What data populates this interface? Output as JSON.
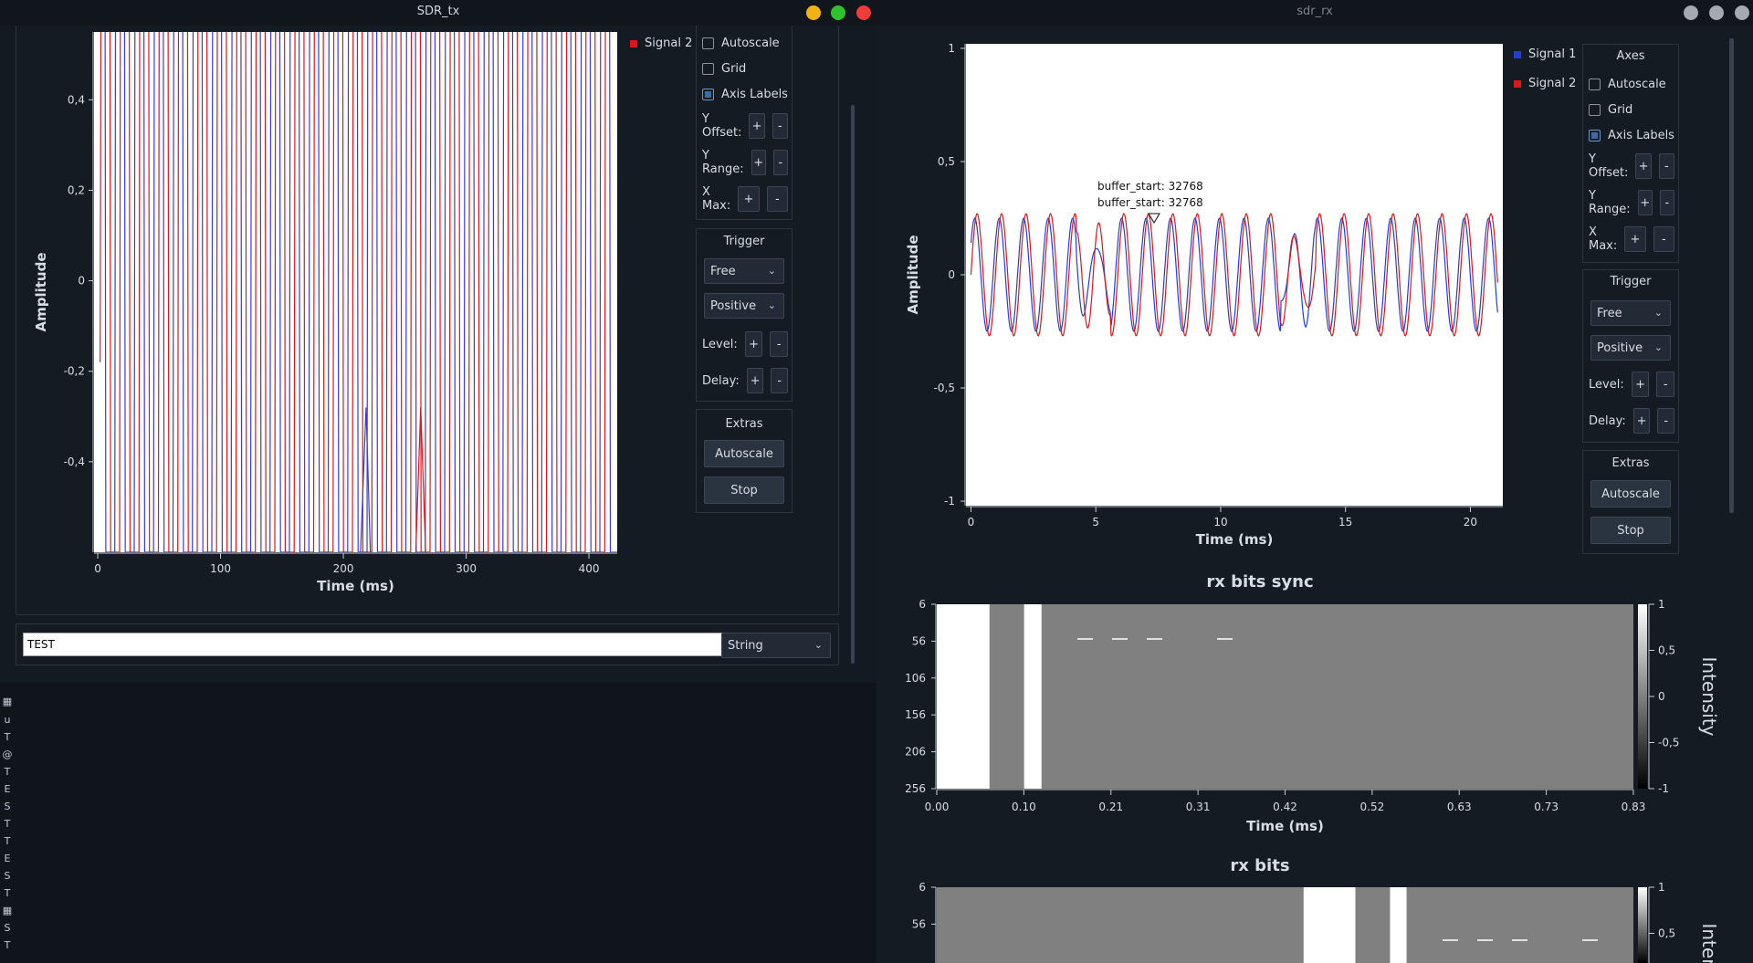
{
  "tx": {
    "title": "SDR_tx",
    "legend": [
      {
        "label": "Signal 2",
        "color": "#e0161b"
      }
    ],
    "axes": {
      "autoscale": "Autoscale",
      "grid": "Grid",
      "axis_labels": "Axis Labels",
      "y_offset": "Y Offset:",
      "y_range": "Y Range:",
      "x_max": "X Max:",
      "plus": "+",
      "minus": "-"
    },
    "trigger": {
      "title": "Trigger",
      "mode": "Free",
      "slope": "Positive",
      "level": "Level:",
      "delay": "Delay:"
    },
    "extras": {
      "title": "Extras",
      "autoscale": "Autoscale",
      "stop": "Stop"
    },
    "input": {
      "value": "TEST"
    },
    "format": "String",
    "side_chars": [
      "u",
      "T",
      "@",
      "T",
      "E",
      "S",
      "T",
      "T",
      "E",
      "S",
      "T",
      "S",
      "T"
    ]
  },
  "rx": {
    "title": "sdr_rx",
    "legend": [
      {
        "label": "Signal 1",
        "color": "#1f3fd8"
      },
      {
        "label": "Signal 2",
        "color": "#e0161b"
      }
    ],
    "axes": {
      "title": "Axes",
      "autoscale": "Autoscale",
      "grid": "Grid",
      "axis_labels": "Axis Labels",
      "y_offset": "Y Offset:",
      "y_range": "Y Range:",
      "x_max": "X Max:",
      "plus": "+",
      "minus": "-"
    },
    "trigger": {
      "title": "Trigger",
      "mode": "Free",
      "slope": "Positive",
      "level": "Level:",
      "delay": "Delay:"
    },
    "extras": {
      "title": "Extras",
      "autoscale": "Autoscale",
      "stop": "Stop"
    },
    "tooltip": [
      "buffer_start: 32768",
      "buffer_start: 32768"
    ]
  },
  "chart_data": [
    {
      "id": "tx_time_plot",
      "type": "line",
      "xlabel": "Time (ms)",
      "ylabel": "Amplitude",
      "xlim": [
        -3,
        423
      ],
      "ylim": [
        -0.6,
        0.55
      ],
      "xticks": [
        0,
        100,
        200,
        300,
        400
      ],
      "yticks": [
        0.4,
        0.2,
        0,
        -0.2,
        -0.4
      ],
      "ytick_labels": [
        "0,4",
        "0,2",
        "0",
        "-0,2",
        "-0,4"
      ],
      "series": [
        {
          "name": "Signal 2",
          "color": "#e0161b",
          "shape": "square-wave-transitions",
          "x_start": 2,
          "x_end": 419,
          "period_ms": 15.8,
          "phase_ms": 2
        },
        {
          "color": "#3a3adf",
          "shape": "square-wave-transitions",
          "x_start": 6,
          "x_end": 419,
          "period_ms": 15.8,
          "phase_ms": 9.5
        }
      ]
    },
    {
      "id": "rx_time_plot",
      "type": "line",
      "xlabel": "Time (ms)",
      "ylabel": "Amplitude",
      "xlim": [
        -0.2,
        21.3
      ],
      "ylim": [
        -1.02,
        1.02
      ],
      "xticks": [
        0,
        5,
        10,
        15,
        20
      ],
      "yticks": [
        1,
        0.5,
        0,
        -0.5,
        -1
      ],
      "ytick_labels": [
        "1",
        "0,5",
        "0",
        "-0,5",
        "-1"
      ],
      "series": [
        {
          "name": "Signal 1",
          "color": "#1f3fd8",
          "amplitude": 0.25,
          "period_ms": 0.98,
          "phase": 0.6
        },
        {
          "name": "Signal 2",
          "color": "#e0161b",
          "amplitude": 0.27,
          "period_ms": 0.98,
          "phase": 0
        }
      ]
    },
    {
      "id": "rx_bits_sync",
      "type": "heatmap",
      "title": "rx bits sync",
      "xlabel": "Time (ms)",
      "colorbar_label": "Intensity",
      "xticks": [
        "0.00",
        "0.10",
        "0.21",
        "0.31",
        "0.42",
        "0.52",
        "0.63",
        "0.73",
        "0.83"
      ],
      "yticks": [
        "6",
        "56",
        "106",
        "156",
        "206",
        "256"
      ],
      "colorbar_ticks": [
        "1",
        "0,5",
        "0",
        "-0,5",
        "-1"
      ],
      "xlim": [
        0,
        0.83
      ],
      "columns": [
        {
          "x0": 0.0,
          "x1": 0.063,
          "value": 1
        },
        {
          "x0": 0.063,
          "x1": 0.104,
          "value": 0
        },
        {
          "x0": 0.104,
          "x1": 0.125,
          "value": 1
        },
        {
          "x0": 0.125,
          "x1": 0.83,
          "value": 0
        }
      ]
    },
    {
      "id": "rx_bits",
      "type": "heatmap",
      "title": "rx bits",
      "colorbar_label": "Intensity",
      "yticks": [
        "6",
        "56"
      ],
      "colorbar_ticks": [
        "1",
        "0,5"
      ],
      "xlim": [
        0,
        0.83
      ],
      "columns": [
        {
          "x0": 0.0,
          "x1": 0.437,
          "value": 0
        },
        {
          "x0": 0.437,
          "x1": 0.499,
          "value": 1
        },
        {
          "x0": 0.499,
          "x1": 0.54,
          "value": 0
        },
        {
          "x0": 0.54,
          "x1": 0.56,
          "value": 1
        },
        {
          "x0": 0.56,
          "x1": 0.83,
          "value": 0
        }
      ]
    }
  ]
}
